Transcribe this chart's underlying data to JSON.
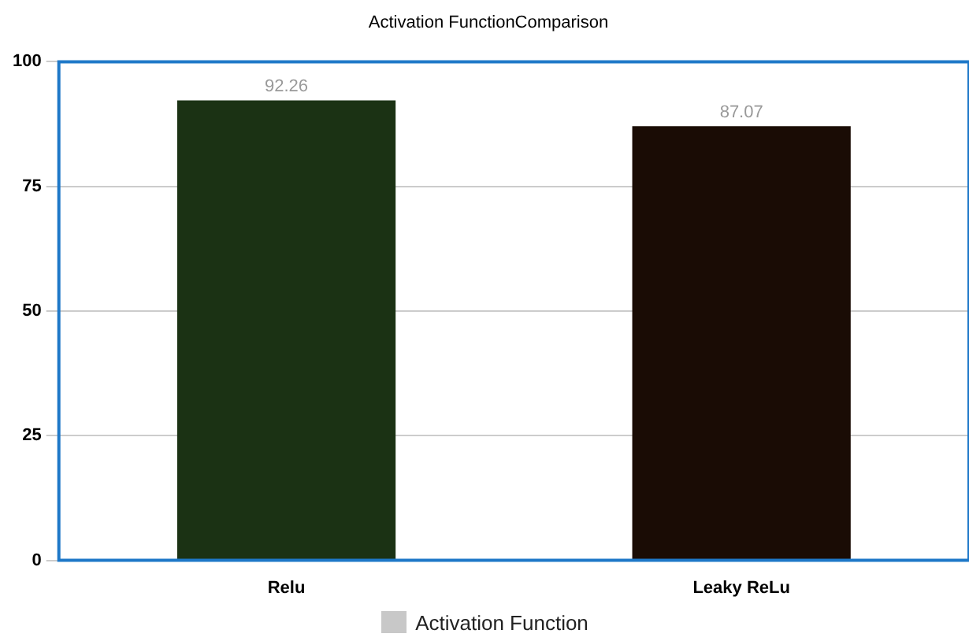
{
  "chart_data": {
    "type": "bar",
    "title": "Activation FunctionComparison",
    "categories": [
      "Relu",
      "Leaky ReLu"
    ],
    "series": [
      {
        "name": "Activation Function",
        "color": "#c8c8c8",
        "colors": [
          "#1b3214",
          "#1a0c05"
        ],
        "values": [
          92.26,
          87.07
        ]
      }
    ],
    "ylim": [
      0,
      100
    ],
    "yticks": [
      0,
      25,
      50,
      75,
      100
    ],
    "grid": "y",
    "legend": "bottom",
    "data_labels": true
  }
}
